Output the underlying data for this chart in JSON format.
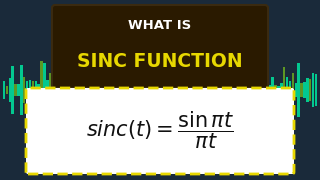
{
  "bg_color": "#1a2a3a",
  "title_box_color": "#2a1a00",
  "title_box_edge": "#3a2a10",
  "title_line1": "WHAT IS",
  "title_line1_color": "#ffffff",
  "title_line2": "SINC FUNCTION",
  "title_line2_color": "#e8d800",
  "formula_box_color": "#ffffff",
  "formula_box_edge": "#e8d800",
  "formula_text": "$sinc(t) = \\dfrac{\\sin \\pi t}{\\pi t}$",
  "formula_color": "#111111",
  "waveform_color_left": "#00e5a0",
  "waveform_color_right": "#00e5a0",
  "waveform_bar_color": "#6aaa20"
}
